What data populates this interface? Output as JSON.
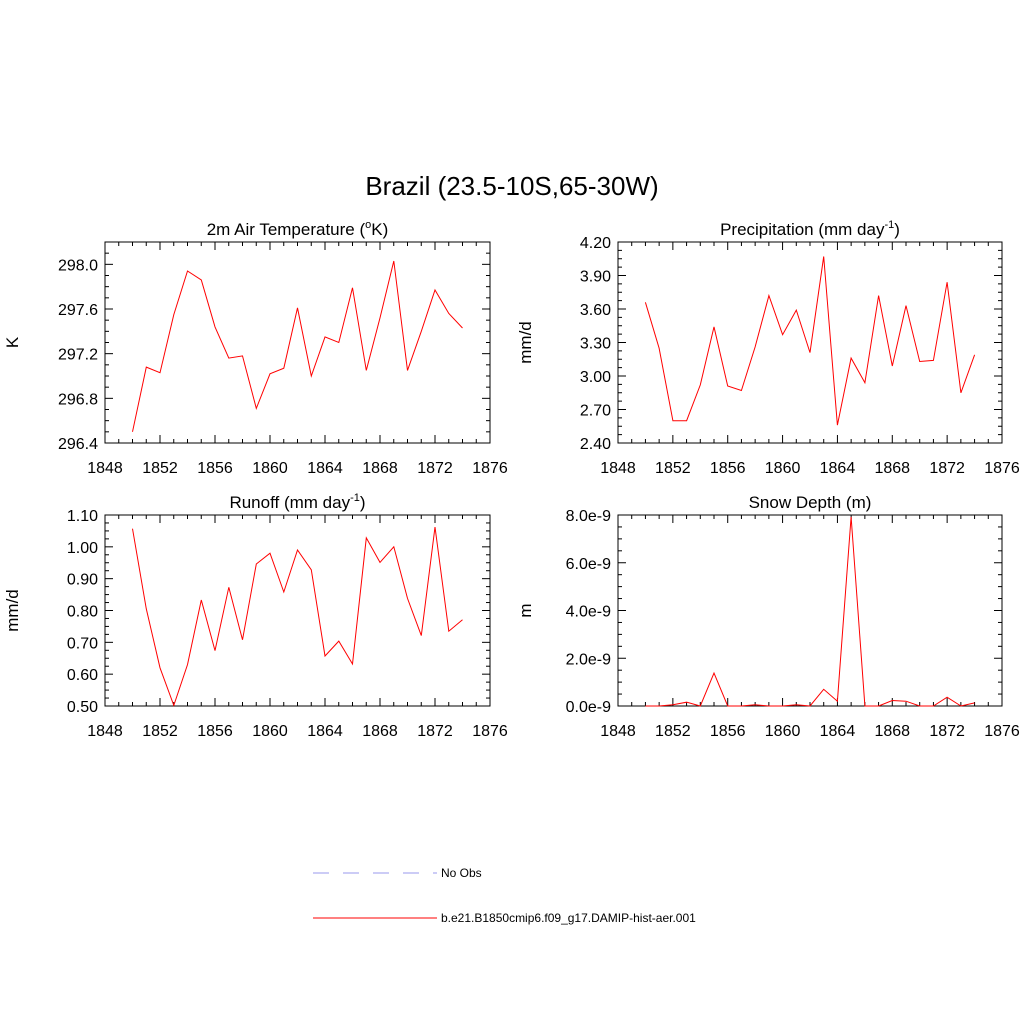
{
  "main_title": "Brazil (23.5-10S,65-30W)",
  "legend": [
    {
      "label": "No Obs",
      "color": "#9999ee",
      "dash": true
    },
    {
      "label": "b.e21.B1850cmip6.f09_g17.DAMIP-hist-aer.001",
      "color": "#ff0000",
      "dash": false
    }
  ],
  "chart_data": [
    {
      "type": "line",
      "title": "2m Air Temperature (",
      "title_sup": "o",
      "title_after": "K)",
      "ylabel": "K",
      "xlim": [
        1848,
        1876
      ],
      "ylim": [
        296.4,
        298.2
      ],
      "xticks": [
        1848,
        1852,
        1856,
        1860,
        1864,
        1868,
        1872,
        1876
      ],
      "yticks": [
        "296.4",
        "296.8",
        "297.2",
        "297.6",
        "298.0"
      ],
      "color": "#ff0000",
      "x": [
        1850,
        1851,
        1852,
        1853,
        1854,
        1855,
        1856,
        1857,
        1858,
        1859,
        1860,
        1861,
        1862,
        1863,
        1864,
        1865,
        1866,
        1867,
        1868,
        1869,
        1870,
        1871,
        1872,
        1873,
        1874
      ],
      "y": [
        296.5,
        297.08,
        297.03,
        297.55,
        297.94,
        297.86,
        297.44,
        297.16,
        297.18,
        296.71,
        297.02,
        297.07,
        297.61,
        297.0,
        297.35,
        297.3,
        297.79,
        297.05,
        297.52,
        298.03,
        297.05,
        297.4,
        297.77,
        297.56,
        297.43
      ]
    },
    {
      "type": "line",
      "title": "Precipitation (mm day",
      "title_sup": "-1",
      "title_after": ")",
      "ylabel": "mm/d",
      "xlim": [
        1848,
        1876
      ],
      "ylim": [
        2.4,
        4.2
      ],
      "xticks": [
        1848,
        1852,
        1856,
        1860,
        1864,
        1868,
        1872,
        1876
      ],
      "yticks": [
        "2.40",
        "2.70",
        "3.00",
        "3.30",
        "3.60",
        "3.90",
        "4.20"
      ],
      "color": "#ff0000",
      "x": [
        1850,
        1851,
        1852,
        1853,
        1854,
        1855,
        1856,
        1857,
        1858,
        1859,
        1860,
        1861,
        1862,
        1863,
        1864,
        1865,
        1866,
        1867,
        1868,
        1869,
        1870,
        1871,
        1872,
        1873,
        1874
      ],
      "y": [
        3.66,
        3.25,
        2.6,
        2.6,
        2.92,
        3.44,
        2.91,
        2.87,
        3.26,
        3.72,
        3.37,
        3.59,
        3.21,
        4.07,
        2.56,
        3.16,
        2.94,
        3.72,
        3.09,
        3.63,
        3.13,
        3.14,
        3.84,
        2.85,
        3.19
      ]
    },
    {
      "type": "line",
      "title": "Runoff (mm day",
      "title_sup": "-1",
      "title_after": ")",
      "ylabel": "mm/d",
      "xlim": [
        1848,
        1876
      ],
      "ylim": [
        0.5,
        1.1
      ],
      "xticks": [
        1848,
        1852,
        1856,
        1860,
        1864,
        1868,
        1872,
        1876
      ],
      "yticks": [
        "0.50",
        "0.60",
        "0.70",
        "0.80",
        "0.90",
        "1.00",
        "1.10"
      ],
      "color": "#ff0000",
      "x": [
        1850,
        1851,
        1852,
        1853,
        1854,
        1855,
        1856,
        1857,
        1858,
        1859,
        1860,
        1861,
        1862,
        1863,
        1864,
        1865,
        1866,
        1867,
        1868,
        1869,
        1870,
        1871,
        1872,
        1873,
        1874
      ],
      "y": [
        1.057,
        0.805,
        0.62,
        0.502,
        0.63,
        0.833,
        0.674,
        0.873,
        0.708,
        0.946,
        0.98,
        0.858,
        0.99,
        0.928,
        0.657,
        0.704,
        0.632,
        1.028,
        0.951,
        1.0,
        0.838,
        0.721,
        1.062,
        0.735,
        0.771
      ]
    },
    {
      "type": "line",
      "title": "Snow Depth (m)",
      "title_sup": "",
      "title_after": "",
      "ylabel": "m",
      "xlim": [
        1848,
        1876
      ],
      "ylim": [
        0,
        8e-09
      ],
      "xticks": [
        1848,
        1852,
        1856,
        1860,
        1864,
        1868,
        1872,
        1876
      ],
      "yticks": [
        "0.0e-9",
        "2.0e-9",
        "4.0e-9",
        "6.0e-9",
        "8.0e-9"
      ],
      "color": "#ff0000",
      "x": [
        1850,
        1851,
        1852,
        1853,
        1854,
        1855,
        1856,
        1857,
        1858,
        1859,
        1860,
        1861,
        1862,
        1863,
        1864,
        1865,
        1866,
        1867,
        1868,
        1869,
        1870,
        1871,
        1872,
        1873,
        1874
      ],
      "y": [
        0.0,
        0.0,
        5e-11,
        1.6e-10,
        0.0,
        1.38e-09,
        0.0,
        0.0,
        5e-11,
        0.0,
        0.0,
        5e-11,
        0.0,
        7e-10,
        2e-10,
        7.92e-09,
        0.0,
        0.0,
        2.3e-10,
        2e-10,
        0.0,
        0.0,
        3.7e-10,
        0.0,
        1.3e-10
      ]
    }
  ]
}
